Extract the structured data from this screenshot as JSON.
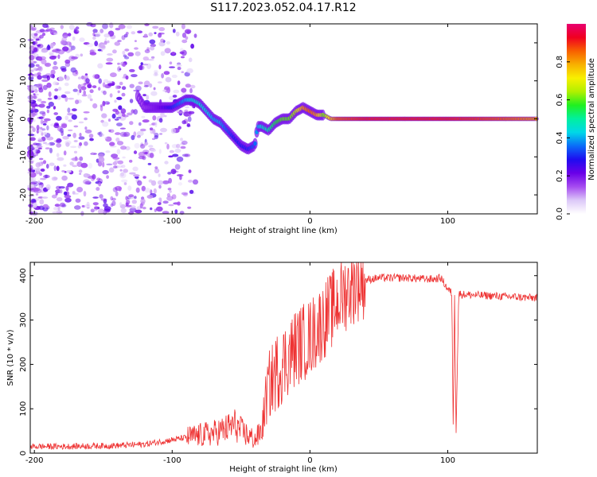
{
  "figure_title": "S117.2023.052.04.17.R12",
  "chart_data": [
    {
      "type": "heatmap",
      "title": "",
      "xlabel": "Height of straight line (km)",
      "ylabel": "Frequency (Hz)",
      "xlim": [
        -203,
        165
      ],
      "ylim": [
        -25,
        25
      ],
      "xticks": [
        -200,
        -100,
        0,
        100
      ],
      "yticks": [
        -20,
        -10,
        0,
        10,
        20
      ],
      "colorbar": {
        "label": "Normalized spectral amplitude",
        "range": [
          0.0,
          1.0
        ],
        "ticks": [
          0.0,
          0.2,
          0.4,
          0.6,
          0.8
        ],
        "colormap": [
          "#ffffff",
          "#dcc8f8",
          "#a64cf0",
          "#6a00e8",
          "#1e0cf0",
          "#0a6cf8",
          "#00d8e8",
          "#00f0a0",
          "#20f020",
          "#b0f000",
          "#f8f000",
          "#f8b000",
          "#f86000",
          "#f00020",
          "#e80070"
        ]
      },
      "ridge": {
        "x": [
          -200,
          -190,
          -180,
          -170,
          -160,
          -150,
          -140,
          -130,
          -120,
          -110,
          -100,
          -95,
          -90,
          -85,
          -80,
          -75,
          -70,
          -65,
          -60,
          -55,
          -50,
          -45,
          -40,
          -38,
          -35,
          -30,
          -25,
          -20,
          -15,
          -10,
          -5,
          0,
          5,
          10,
          15,
          20,
          40,
          60,
          80,
          100,
          120,
          140,
          165
        ],
        "freq": [
          8,
          8,
          7,
          6,
          5,
          5,
          6,
          9,
          3,
          3,
          3,
          4,
          5,
          5,
          4,
          2,
          0,
          -1,
          -3,
          -5,
          -7,
          -8,
          -7,
          -2,
          -2,
          -3,
          -1,
          0,
          0,
          2,
          3,
          2,
          1,
          1,
          0,
          0,
          0,
          0,
          0,
          0,
          0,
          0,
          0
        ],
        "amplitude": [
          0.08,
          0.08,
          0.08,
          0.08,
          0.08,
          0.08,
          0.08,
          0.1,
          0.15,
          0.2,
          0.3,
          0.35,
          0.4,
          0.45,
          0.45,
          0.45,
          0.4,
          0.4,
          0.35,
          0.3,
          0.3,
          0.3,
          0.35,
          0.4,
          0.45,
          0.5,
          0.55,
          0.6,
          0.6,
          0.65,
          0.8,
          0.85,
          0.8,
          0.6,
          0.75,
          0.85,
          0.9,
          0.9,
          0.9,
          0.9,
          0.88,
          0.85,
          0.8
        ]
      }
    },
    {
      "type": "line",
      "title": "",
      "xlabel": "Height of straight line (km)",
      "ylabel": "SNR (10 * v/v)",
      "xlim": [
        -203,
        165
      ],
      "ylim": [
        0,
        430
      ],
      "xticks": [
        -200,
        -100,
        0,
        100
      ],
      "yticks": [
        0,
        100,
        200,
        300,
        400
      ],
      "color": "#ee3333",
      "series": [
        {
          "x": [
            -203,
            -180,
            -160,
            -140,
            -120,
            -110,
            -100,
            -90,
            -80,
            -70,
            -60,
            -55,
            -50,
            -45,
            -40,
            -35,
            -32,
            -30,
            -25,
            -20,
            -15,
            -10,
            -5,
            0,
            5,
            10,
            15,
            20,
            25,
            30,
            35,
            40,
            50,
            60,
            70,
            80,
            90,
            95,
            100,
            103,
            104,
            105,
            106,
            108,
            110,
            120,
            130,
            140,
            150,
            160,
            165
          ],
          "y": [
            15,
            15,
            16,
            17,
            20,
            25,
            30,
            35,
            40,
            45,
            55,
            65,
            50,
            40,
            30,
            50,
            120,
            150,
            180,
            200,
            220,
            240,
            250,
            260,
            280,
            300,
            320,
            340,
            360,
            375,
            385,
            390,
            395,
            395,
            395,
            393,
            392,
            395,
            370,
            360,
            45,
            360,
            45,
            360,
            358,
            356,
            355,
            353,
            352,
            350,
            350
          ]
        }
      ]
    }
  ]
}
